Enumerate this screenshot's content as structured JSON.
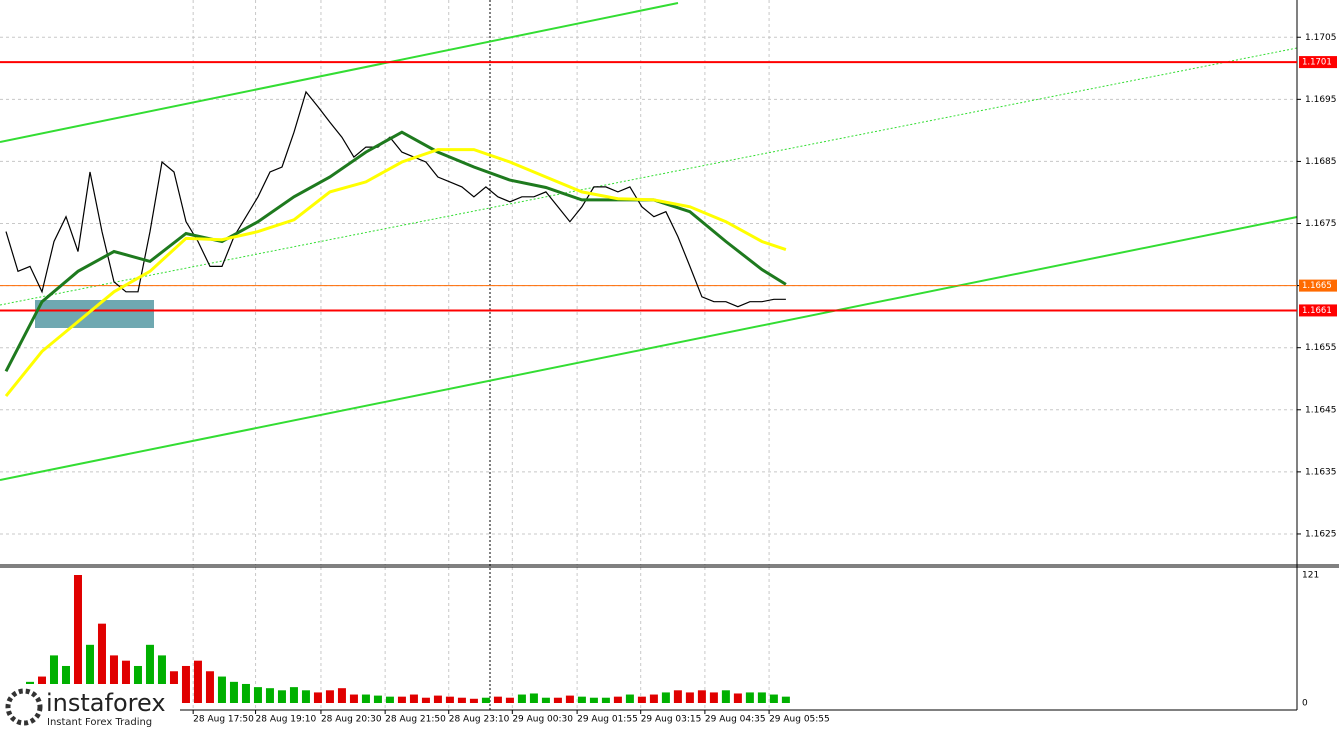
{
  "chart_data": [
    {
      "type": "line",
      "x": [
        0,
        1,
        2,
        3,
        4,
        5,
        6,
        7,
        8,
        9,
        10,
        11,
        12,
        13,
        14,
        15,
        16,
        17,
        18,
        19,
        20,
        21,
        22,
        23,
        24,
        25,
        26,
        27,
        28,
        29,
        30,
        31,
        32,
        33,
        34,
        35,
        36,
        37,
        38,
        39,
        40,
        41,
        42,
        43,
        44,
        45,
        46,
        47,
        48,
        49,
        50,
        51,
        52,
        53,
        54,
        55,
        56,
        57,
        58,
        59,
        60,
        61,
        62,
        63,
        64,
        65
      ],
      "series": [
        {
          "color": "#000000",
          "values": [
            1.16737,
            1.16673,
            1.16681,
            1.1664,
            1.16721,
            1.16761,
            1.16705,
            1.16833,
            1.16737,
            1.16656,
            1.1664,
            1.1664,
            1.16737,
            1.16849,
            1.16833,
            1.16753,
            1.16721,
            1.16681,
            1.16681,
            1.16729,
            1.16761,
            1.16793,
            1.16833,
            1.16841,
            1.16897,
            1.16962,
            1.16938,
            1.16913,
            1.16889,
            1.16857,
            1.16873,
            1.16873,
            1.16889,
            1.16865,
            1.16857,
            1.16849,
            1.16825,
            1.16817,
            1.16809,
            1.16793,
            1.16809,
            1.16793,
            1.16785,
            1.16793,
            1.16793,
            1.16801,
            1.16777,
            1.16753,
            1.16777,
            1.16809,
            1.16809,
            1.16801,
            1.16809,
            1.16777,
            1.16761,
            1.16769,
            1.16729,
            1.16681,
            1.16632,
            1.16624,
            1.16624,
            1.16616,
            1.16624,
            1.16624,
            1.16628,
            1.16628
          ]
        },
        {
          "color": "#1e7a1e",
          "x": [
            0,
            3,
            6,
            9,
            12,
            15,
            18,
            21,
            24,
            27,
            30,
            33,
            36,
            39,
            42,
            45,
            48,
            51,
            54,
            57,
            60,
            63,
            65
          ],
          "values": [
            1.16512,
            1.16624,
            1.16673,
            1.16705,
            1.16689,
            1.16734,
            1.16721,
            1.16753,
            1.16793,
            1.16825,
            1.16865,
            1.16897,
            1.16865,
            1.16841,
            1.1682,
            1.16808,
            1.16788,
            1.16788,
            1.16788,
            1.16769,
            1.16721,
            1.16676,
            1.16652
          ]
        },
        {
          "color": "#ffff00",
          "x": [
            0,
            3,
            6,
            9,
            12,
            15,
            18,
            21,
            24,
            27,
            30,
            33,
            36,
            39,
            42,
            45,
            48,
            51,
            54,
            57,
            60,
            63,
            65
          ],
          "values": [
            1.16472,
            1.16544,
            1.16592,
            1.1664,
            1.16673,
            1.16726,
            1.16724,
            1.16737,
            1.16756,
            1.16801,
            1.16817,
            1.16849,
            1.16869,
            1.16869,
            1.16849,
            1.16825,
            1.16801,
            1.1679,
            1.16788,
            1.16777,
            1.16753,
            1.16721,
            1.16708
          ]
        }
      ],
      "levels": [
        {
          "value": 1.1701,
          "color": "#ff0000"
        },
        {
          "value": 1.1665,
          "color": "#ff6a00"
        },
        {
          "value": 1.1661,
          "color": "#ff0000"
        }
      ],
      "xlim": [
        -0.5,
        107.6
      ],
      "ylim": [
        1.162,
        1.1711
      ],
      "yticks": [
        1.1625,
        1.1635,
        1.1645,
        1.1655,
        1.1665,
        1.1675,
        1.1685,
        1.1695,
        1.1705
      ],
      "grid": true
    },
    {
      "type": "bar",
      "up_color": "#00b000",
      "down_color": "#e00000",
      "values": [
        10,
        15,
        20,
        25,
        45,
        35,
        121,
        55,
        75,
        45,
        40,
        35,
        55,
        45,
        30,
        35,
        40,
        30,
        25,
        20,
        18,
        15,
        14,
        12,
        15,
        12,
        10,
        12,
        14,
        8,
        8,
        7,
        6,
        6,
        8,
        5,
        7,
        6,
        5,
        4,
        5,
        6,
        5,
        8,
        9,
        5,
        5,
        7,
        6,
        5,
        5,
        6,
        8,
        6,
        8,
        10,
        12,
        10,
        12,
        10,
        12,
        9,
        10,
        10,
        8,
        6
      ],
      "xlim": [
        -0.5,
        107.6
      ],
      "xticks": [
        {
          "value": 15.6,
          "label": "28 Aug 17:50"
        },
        {
          "value": 20.8,
          "label": "28 Aug 19:10"
        },
        {
          "value": 26.25,
          "label": "28 Aug 20:30"
        },
        {
          "value": 31.6,
          "label": "28 Aug 21:50"
        },
        {
          "value": 36.9,
          "label": "28 Aug 23:10"
        },
        {
          "value": 42.2,
          "label": "29 Aug 00:30"
        },
        {
          "value": 47.6,
          "label": "29 Aug 01:55"
        },
        {
          "value": 52.9,
          "label": "29 Aug 03:15"
        },
        {
          "value": 58.25,
          "label": "29 Aug 04:35"
        },
        {
          "value": 63.6,
          "label": "29 Aug 05:55"
        }
      ],
      "ylim": [
        0,
        121
      ],
      "yticks": [
        0,
        121
      ],
      "grid": true
    }
  ],
  "logo": {
    "name": "instaforex",
    "tagline": "Instant Forex Trading"
  }
}
